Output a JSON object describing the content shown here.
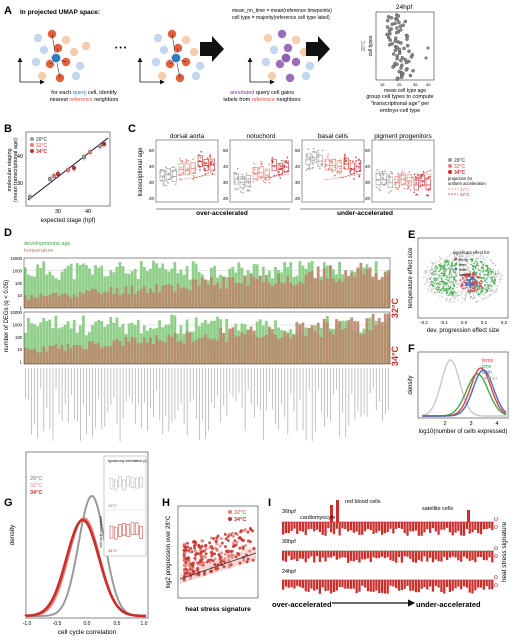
{
  "panel_letters": {
    "A": "A",
    "B": "B",
    "C": "C",
    "D": "D",
    "E": "E",
    "F": "F",
    "G": "G",
    "H": "H",
    "I": "I"
  },
  "panelA": {
    "heading": "In projected UMAP space:",
    "ellipsis": "• • •",
    "formula_line1": "mean_nn_time = mean(reference timepoints)",
    "formula_line2": "cell type = majority(reference cell type label)",
    "caption1_line1_prefix": "for each ",
    "caption1_line1_query": "query",
    "caption1_line1_suffix": " cell, identify",
    "caption1_line2_prefix": "nearest ",
    "caption1_line2_reference": "reference",
    "caption1_line2_suffix": " neighbors",
    "caption2_line1_annotated": "annotated",
    "caption2_line1_suffix": " query cell gains",
    "caption2_line2_prefix": "labels from ",
    "caption2_line2_reference": "reference",
    "caption2_line2_suffix": " neighbors",
    "caption3_line1": "group cell types to compute",
    "caption3_line2": "\"transcriptional age\" per",
    "caption3_line3": "embryo-cell type",
    "plot_title": "24hpf",
    "plot_ylabel": "cell types",
    "plot_side": "28°C",
    "plot_xlabel": "mean cell type age",
    "plot_ticks": [
      "15",
      "25",
      "35",
      "40"
    ]
  },
  "panelB": {
    "ylabel_line1": "molecular staging",
    "ylabel_line2": "(mean transcriptional age)",
    "xlabel": "expected stage (hpf)",
    "xticks": [
      "30",
      "40"
    ],
    "yticks": [
      "30",
      "40"
    ],
    "legend": [
      "28°C",
      "32°C",
      "34°C"
    ]
  },
  "panelC": {
    "ylabel": "transcriptional age",
    "titles": [
      "dorsal aorta",
      "notochord",
      "basal cells",
      "pigment progenitors"
    ],
    "yticks": [
      "20",
      "30",
      "40",
      "50"
    ],
    "group_over": "over-accelerated",
    "group_under": "under-accelerated",
    "legend": [
      "28°C",
      "32°C",
      "34°C"
    ],
    "proj_line1": "projection for",
    "proj_line2": "uniform acceleration",
    "proj_32": "32°C",
    "proj_34": "34°C"
  },
  "panelD": {
    "ylabel": "number of DEGs (q < 0.05)",
    "legend_dev": "developmental age",
    "legend_temp": "temperature",
    "yticks": [
      "10000",
      "1000",
      "100",
      "10",
      "1"
    ],
    "label_32": "32°C",
    "label_34": "34°C"
  },
  "panelE": {
    "ylabel": "temperature effect size",
    "xlabel": "dev. progression effect size",
    "legend_title": "significant effect for:",
    "legend": [
      "temp",
      "time",
      "both",
      "neither"
    ],
    "xticks": [
      "-0.2",
      "-0.1",
      "0.0",
      "0.1",
      "0.2"
    ]
  },
  "panelF": {
    "ylabel": "density",
    "xlabel": "log10(number of cells expressed)",
    "xticks": [
      "2",
      "3",
      "4"
    ],
    "legend": [
      "temp",
      "time",
      "both",
      "neither"
    ]
  },
  "panelG": {
    "ylabel": "density",
    "xlabel": "cell cycle correlation",
    "xticks": [
      "-1.0",
      "-0.5",
      "0.0",
      "0.5",
      "1.0"
    ],
    "legend": [
      "28°C",
      "32°C",
      "34°C"
    ],
    "inset_top": "synchrony correlation (r)",
    "inset_label_28": "28°C",
    "inset_label_34": "34°C",
    "inset_ylabel": "cell cycle correlation"
  },
  "panelH": {
    "ylabel": "log2 progression over 28°C",
    "xlabel": "heat stress signature",
    "legend": [
      "32°C",
      "34°C"
    ]
  },
  "panelI": {
    "rows": [
      "36hpf",
      "30hpf",
      "24hpf"
    ],
    "ann_cardio": "cardiomyocyte",
    "ann_rbc": "red blood cells",
    "ann_sat": "satellite cells",
    "ylabel": "heat stress signature",
    "left": "over-accelerated",
    "right": "under-accelerated"
  },
  "colors": {
    "query": "#2e7fc0",
    "reference": "#e0502a",
    "annotated": "#7b3f9e",
    "c28": "#9a9a9a",
    "c32": "#e77f7a",
    "c34": "#c9302c",
    "green": "#8fcf8a",
    "brown": "#b9876a",
    "temp": "#e0424a",
    "time": "#3fae49",
    "both": "#4a6fb5",
    "neither": "#c8c8c8"
  }
}
